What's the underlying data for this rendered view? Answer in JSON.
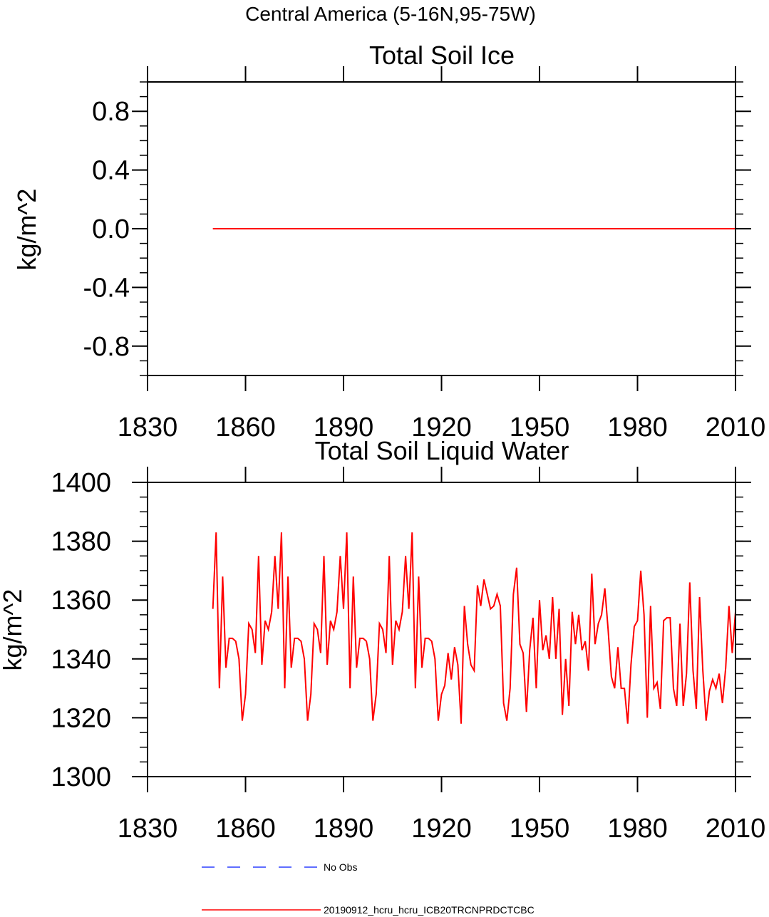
{
  "super_title": "Central America (5-16N,95-75W)",
  "legend": [
    {
      "label": "No Obs",
      "color": "#2a3fff",
      "style": "dashed"
    },
    {
      "label": "20190912_hcru_hcru_ICB20TRCNPRDCTCBC",
      "color": "#ff0000",
      "style": "solid"
    }
  ],
  "chart_data": [
    {
      "type": "line",
      "title": "Total Soil Ice",
      "xlabel": "",
      "ylabel": "kg/m^2",
      "xlim": [
        1830,
        2010
      ],
      "ylim": [
        -1.0,
        1.0
      ],
      "xticks": [
        1830,
        1860,
        1890,
        1920,
        1950,
        1980,
        2010
      ],
      "xtick_labels": [
        "1830",
        "1860",
        "1890",
        "1920",
        "1950",
        "1980",
        "2010"
      ],
      "yticks": [
        0.8,
        0.4,
        0.0,
        -0.4,
        -0.8
      ],
      "ytick_labels": [
        "0.8",
        "0.4",
        "0.0",
        "-0.4",
        "-0.8"
      ],
      "series": [
        {
          "name": "20190912_hcru_hcru_ICB20TRCNPRDCTCBC",
          "color": "#ff0000",
          "x": [
            1850,
            2010
          ],
          "values": [
            0,
            0
          ]
        }
      ]
    },
    {
      "type": "line",
      "title": "Total Soil Liquid Water",
      "xlabel": "",
      "ylabel": "kg/m^2",
      "xlim": [
        1830,
        2010
      ],
      "ylim": [
        1300,
        1400
      ],
      "xticks": [
        1830,
        1860,
        1890,
        1920,
        1950,
        1980,
        2010
      ],
      "xtick_labels": [
        "1830",
        "1860",
        "1890",
        "1920",
        "1950",
        "1980",
        "2010"
      ],
      "yticks": [
        1400,
        1380,
        1360,
        1340,
        1320,
        1300
      ],
      "ytick_labels": [
        "1400",
        "1380",
        "1360",
        "1340",
        "1320",
        "1300"
      ],
      "series": [
        {
          "name": "20190912_hcru_hcru_ICB20TRCNPRDCTCBC",
          "color": "#ff0000",
          "x_start": 1850,
          "values": [
            1357,
            1383,
            1330,
            1368,
            1337,
            1347,
            1347,
            1346,
            1340,
            1319,
            1328,
            1352,
            1350,
            1342,
            1375,
            1338,
            1353,
            1350,
            1356,
            1375,
            1357,
            1383,
            1330,
            1368,
            1337,
            1347,
            1347,
            1346,
            1340,
            1319,
            1328,
            1352,
            1350,
            1342,
            1375,
            1338,
            1353,
            1350,
            1356,
            1375,
            1357,
            1383,
            1330,
            1368,
            1337,
            1347,
            1347,
            1346,
            1340,
            1319,
            1328,
            1352,
            1350,
            1342,
            1375,
            1338,
            1353,
            1350,
            1356,
            1375,
            1357,
            1383,
            1330,
            1368,
            1337,
            1347,
            1347,
            1346,
            1340,
            1319,
            1328,
            1331,
            1342,
            1333,
            1344,
            1338,
            1318,
            1358,
            1345,
            1338,
            1336,
            1365,
            1358,
            1367,
            1362,
            1357,
            1358,
            1362,
            1358,
            1325,
            1319,
            1330,
            1362,
            1371,
            1345,
            1342,
            1322,
            1343,
            1354,
            1330,
            1360,
            1343,
            1348,
            1340,
            1361,
            1340,
            1357,
            1321,
            1340,
            1324,
            1356,
            1345,
            1355,
            1343,
            1346,
            1336,
            1369,
            1345,
            1352,
            1355,
            1364,
            1350,
            1334,
            1330,
            1344,
            1330,
            1330,
            1318,
            1338,
            1351,
            1353,
            1370,
            1355,
            1320,
            1358,
            1330,
            1332,
            1323,
            1353,
            1354,
            1354,
            1330,
            1324,
            1352,
            1324,
            1335,
            1366,
            1336,
            1323,
            1361,
            1336,
            1319,
            1329,
            1333,
            1330,
            1335,
            1325,
            1337,
            1358,
            1342,
            1356
          ]
        }
      ]
    }
  ]
}
